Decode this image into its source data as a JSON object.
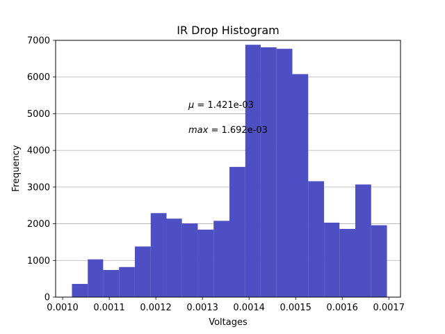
{
  "chart_data": {
    "type": "bar",
    "title": "IR Drop Histogram",
    "xlabel": "Voltages",
    "ylabel": "Frequency",
    "xlim": [
      0.000985,
      0.001725
    ],
    "ylim": [
      0,
      7000
    ],
    "grid": "y",
    "bar_color": "#4f4fc4",
    "bin_edges": [
      0.00102,
      0.001054,
      0.001087,
      0.001121,
      0.001155,
      0.001189,
      0.001223,
      0.001256,
      0.00129,
      0.001324,
      0.001358,
      0.001392,
      0.001425,
      0.001459,
      0.001493,
      0.001527,
      0.001561,
      0.001594,
      0.001628,
      0.001662,
      0.001696
    ],
    "counts": [
      360,
      1030,
      740,
      820,
      1380,
      2290,
      2140,
      2010,
      1840,
      2080,
      3550,
      6880,
      6810,
      6770,
      6080,
      3160,
      2030,
      1860,
      3070,
      1960
    ],
    "x_ticks": [
      {
        "value": 0.001,
        "label": "0.0010"
      },
      {
        "value": 0.0011,
        "label": "0.0011"
      },
      {
        "value": 0.0012,
        "label": "0.0012"
      },
      {
        "value": 0.0013,
        "label": "0.0013"
      },
      {
        "value": 0.0014,
        "label": "0.0014"
      },
      {
        "value": 0.0015,
        "label": "0.0015"
      },
      {
        "value": 0.0016,
        "label": "0.0016"
      },
      {
        "value": 0.0017,
        "label": "0.0017"
      }
    ],
    "y_ticks": [
      {
        "value": 0,
        "label": "0"
      },
      {
        "value": 1000,
        "label": "1000"
      },
      {
        "value": 2000,
        "label": "2000"
      },
      {
        "value": 3000,
        "label": "3000"
      },
      {
        "value": 4000,
        "label": "4000"
      },
      {
        "value": 5000,
        "label": "5000"
      },
      {
        "value": 6000,
        "label": "6000"
      },
      {
        "value": 7000,
        "label": "7000"
      }
    ],
    "annotations": [
      {
        "symbol": "μ",
        "text": " = 1.421e-03"
      },
      {
        "symbol": "max",
        "text": " = 1.692e-03"
      }
    ]
  }
}
